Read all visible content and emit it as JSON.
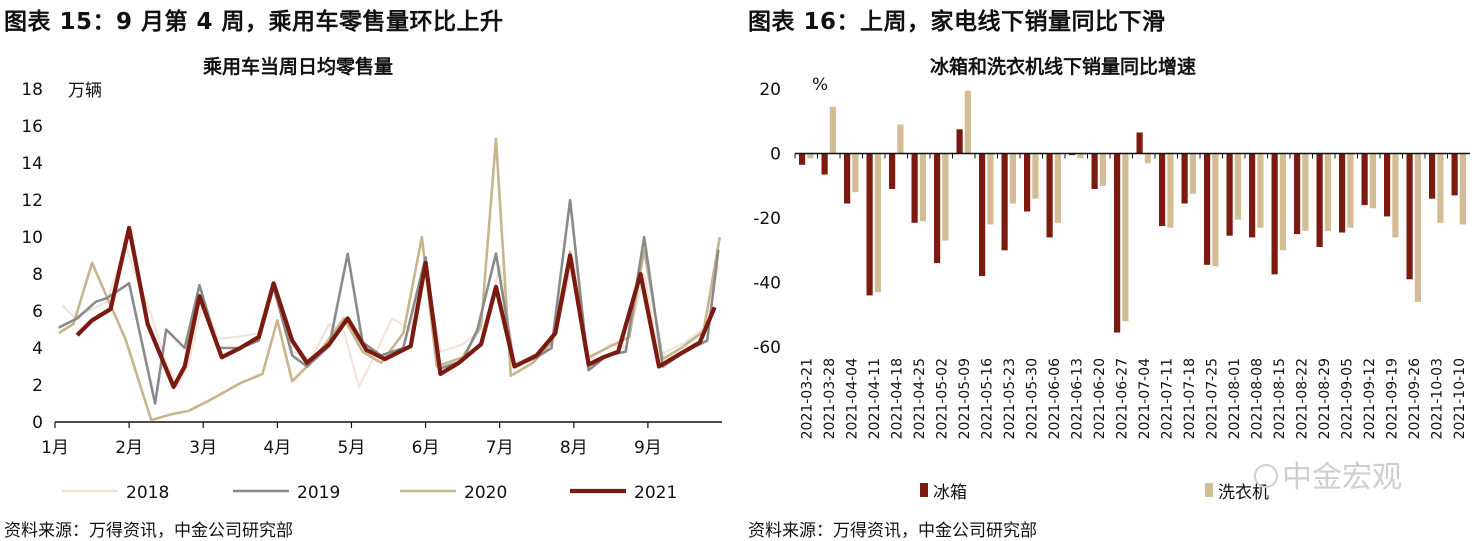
{
  "left": {
    "figure_title": "图表 15：9 月第 4 周，乘用车零售量环比上升",
    "source": "资料来源：万得资讯，中金公司研究部"
  },
  "right": {
    "figure_title": "图表 16：上周，家电线下销量同比下滑",
    "source": "资料来源：万得资讯，中金公司研究部"
  },
  "watermark": "中金宏观",
  "colors": {
    "c2018": "#f2e4dc",
    "c2019": "#8a8a8a",
    "c2020": "#c8b48d",
    "c2021": "#7b1a0f",
    "fridge": "#7b1a0f",
    "washer": "#d2bd95"
  },
  "chart_data": [
    {
      "type": "line",
      "title": "乘用车当周日均零售量",
      "ylabel": "万辆",
      "ylim": [
        0,
        18
      ],
      "yticks": [
        "0",
        "2",
        "4",
        "6",
        "8",
        "10",
        "12",
        "14",
        "16",
        "18"
      ],
      "xlim": [
        1,
        10
      ],
      "xtick_positions": [
        1,
        2,
        3,
        4,
        5,
        6,
        7,
        8,
        9
      ],
      "xtick_labels": [
        "1月",
        "2月",
        "3月",
        "4月",
        "5月",
        "6月",
        "7月",
        "8月",
        "9月"
      ],
      "series": [
        {
          "name": "2018",
          "color_key": "c2018",
          "points": [
            [
              1.1,
              6.3
            ],
            [
              1.25,
              5.7
            ],
            [
              1.45,
              6.0
            ],
            [
              1.7,
              6.5
            ],
            [
              1.95,
              9.6
            ],
            [
              2.1,
              7.8
            ],
            [
              2.3,
              5.8
            ],
            [
              2.5,
              3.2
            ],
            [
              2.65,
              1.9
            ],
            [
              2.8,
              3.1
            ],
            [
              3.0,
              6.6
            ],
            [
              3.2,
              4.5
            ],
            [
              3.45,
              4.6
            ],
            [
              3.75,
              4.8
            ],
            [
              3.95,
              7.3
            ],
            [
              4.2,
              3.8
            ],
            [
              4.45,
              3.4
            ],
            [
              4.7,
              5.3
            ],
            [
              4.9,
              4.9
            ],
            [
              5.1,
              1.9
            ],
            [
              5.3,
              3.5
            ],
            [
              5.55,
              5.6
            ],
            [
              5.8,
              5.0
            ],
            [
              6.0,
              8.3
            ],
            [
              6.2,
              3.8
            ],
            [
              6.5,
              4.2
            ],
            [
              6.8,
              5.1
            ],
            [
              7.0,
              8.4
            ],
            [
              7.2,
              3.2
            ],
            [
              7.5,
              3.6
            ],
            [
              7.75,
              4.6
            ],
            [
              8.0,
              8.9
            ],
            [
              8.2,
              3.3
            ],
            [
              8.5,
              4.2
            ],
            [
              8.7,
              4.0
            ],
            [
              8.95,
              8.0
            ],
            [
              9.15,
              3.6
            ],
            [
              9.5,
              4.3
            ],
            [
              9.8,
              5.2
            ],
            [
              9.95,
              8.5
            ]
          ]
        },
        {
          "name": "2019",
          "color_key": "c2019",
          "points": [
            [
              1.05,
              5.1
            ],
            [
              1.3,
              5.6
            ],
            [
              1.55,
              6.5
            ],
            [
              1.7,
              6.7
            ],
            [
              2.0,
              7.5
            ],
            [
              2.35,
              1.0
            ],
            [
              2.5,
              5.0
            ],
            [
              2.75,
              4.0
            ],
            [
              2.95,
              7.4
            ],
            [
              3.2,
              4.0
            ],
            [
              3.5,
              4.0
            ],
            [
              3.75,
              4.4
            ],
            [
              3.95,
              7.3
            ],
            [
              4.2,
              3.6
            ],
            [
              4.4,
              3.0
            ],
            [
              4.7,
              4.1
            ],
            [
              4.95,
              9.1
            ],
            [
              5.15,
              4.3
            ],
            [
              5.4,
              3.6
            ],
            [
              5.7,
              4.0
            ],
            [
              6.0,
              8.9
            ],
            [
              6.2,
              2.9
            ],
            [
              6.5,
              3.3
            ],
            [
              6.7,
              5.0
            ],
            [
              6.95,
              9.1
            ],
            [
              7.2,
              3.0
            ],
            [
              7.5,
              3.5
            ],
            [
              7.7,
              4.0
            ],
            [
              7.95,
              12.0
            ],
            [
              8.2,
              2.8
            ],
            [
              8.45,
              3.6
            ],
            [
              8.7,
              3.8
            ],
            [
              8.95,
              10.0
            ],
            [
              9.2,
              3.0
            ],
            [
              9.5,
              3.8
            ],
            [
              9.8,
              4.4
            ],
            [
              9.95,
              9.3
            ]
          ]
        },
        {
          "name": "2020",
          "color_key": "c2020",
          "points": [
            [
              1.05,
              4.8
            ],
            [
              1.25,
              5.3
            ],
            [
              1.5,
              8.6
            ],
            [
              1.75,
              6.3
            ],
            [
              1.95,
              4.5
            ],
            [
              2.3,
              0.1
            ],
            [
              2.55,
              0.4
            ],
            [
              2.8,
              0.6
            ],
            [
              3.1,
              1.2
            ],
            [
              3.5,
              2.1
            ],
            [
              3.8,
              2.6
            ],
            [
              4.0,
              5.5
            ],
            [
              4.2,
              2.2
            ],
            [
              4.45,
              3.2
            ],
            [
              4.7,
              4.5
            ],
            [
              4.9,
              5.6
            ],
            [
              5.15,
              3.8
            ],
            [
              5.4,
              3.2
            ],
            [
              5.7,
              4.8
            ],
            [
              5.95,
              10.0
            ],
            [
              6.15,
              3.0
            ],
            [
              6.5,
              3.5
            ],
            [
              6.75,
              5.2
            ],
            [
              6.95,
              15.3
            ],
            [
              7.15,
              2.5
            ],
            [
              7.45,
              3.2
            ],
            [
              7.7,
              4.3
            ],
            [
              7.95,
              9.2
            ],
            [
              8.2,
              3.5
            ],
            [
              8.45,
              4.0
            ],
            [
              8.75,
              4.6
            ],
            [
              8.95,
              9.3
            ],
            [
              9.2,
              3.4
            ],
            [
              9.45,
              4.0
            ],
            [
              9.75,
              4.9
            ],
            [
              9.97,
              10.0
            ]
          ]
        },
        {
          "name": "2021",
          "color_key": "c2021",
          "points": [
            [
              1.3,
              4.7
            ],
            [
              1.5,
              5.5
            ],
            [
              1.75,
              6.1
            ],
            [
              2.0,
              10.5
            ],
            [
              2.25,
              5.3
            ],
            [
              2.6,
              1.9
            ],
            [
              2.75,
              3.0
            ],
            [
              2.95,
              6.8
            ],
            [
              3.25,
              3.5
            ],
            [
              3.5,
              4.0
            ],
            [
              3.75,
              4.6
            ],
            [
              3.95,
              7.5
            ],
            [
              4.2,
              4.4
            ],
            [
              4.4,
              3.2
            ],
            [
              4.7,
              4.2
            ],
            [
              4.95,
              5.6
            ],
            [
              5.2,
              3.9
            ],
            [
              5.45,
              3.4
            ],
            [
              5.8,
              4.1
            ],
            [
              6.0,
              8.6
            ],
            [
              6.2,
              2.6
            ],
            [
              6.45,
              3.2
            ],
            [
              6.75,
              4.2
            ],
            [
              6.95,
              7.3
            ],
            [
              7.2,
              3.0
            ],
            [
              7.5,
              3.6
            ],
            [
              7.75,
              4.8
            ],
            [
              7.95,
              9.0
            ],
            [
              8.2,
              3.1
            ],
            [
              8.4,
              3.5
            ],
            [
              8.6,
              3.8
            ],
            [
              8.9,
              8.0
            ],
            [
              9.15,
              3.0
            ],
            [
              9.4,
              3.6
            ],
            [
              9.7,
              4.3
            ],
            [
              9.9,
              6.2
            ]
          ]
        }
      ]
    },
    {
      "type": "bar",
      "title": "冰箱和洗衣机线下销量同比增速",
      "ylabel": "%",
      "ylim": [
        -60,
        20
      ],
      "yticks": [
        "-60",
        "-40",
        "-20",
        "0",
        "20"
      ],
      "categories": [
        "2021-03-21",
        "2021-03-28",
        "2021-04-04",
        "2021-04-11",
        "2021-04-18",
        "2021-04-25",
        "2021-05-02",
        "2021-05-09",
        "2021-05-16",
        "2021-05-23",
        "2021-05-30",
        "2021-06-06",
        "2021-06-13",
        "2021-06-20",
        "2021-06-27",
        "2021-07-04",
        "2021-07-11",
        "2021-07-18",
        "2021-07-25",
        "2021-08-01",
        "2021-08-08",
        "2021-08-15",
        "2021-08-22",
        "2021-08-29",
        "2021-09-05",
        "2021-09-12",
        "2021-09-19",
        "2021-09-26",
        "2021-10-03",
        "2021-10-10"
      ],
      "series": [
        {
          "name": "冰箱",
          "color_key": "fridge",
          "values": [
            -3.5,
            -6.5,
            -15.5,
            -44,
            -11,
            -21.5,
            -34,
            7.5,
            -38,
            -30,
            -18,
            -26,
            -0.5,
            -11,
            -55.5,
            6.5,
            -22.5,
            -15.5,
            -34.5,
            -25.5,
            -26,
            -37.5,
            -25,
            -29,
            -24.5,
            -16,
            -19.5,
            -39,
            -14,
            -13
          ]
        },
        {
          "name": "洗衣机",
          "color_key": "washer",
          "values": [
            -1.5,
            14.5,
            -12,
            -43,
            9,
            -21,
            -27,
            19.5,
            -22,
            -15.5,
            -14,
            -21.5,
            -1.5,
            -10,
            -52,
            -3,
            -23,
            -12.5,
            -35,
            -20.5,
            -23,
            -30,
            -24,
            -24,
            -23,
            -17,
            -26,
            -46,
            -21.5,
            -22
          ]
        }
      ]
    }
  ]
}
